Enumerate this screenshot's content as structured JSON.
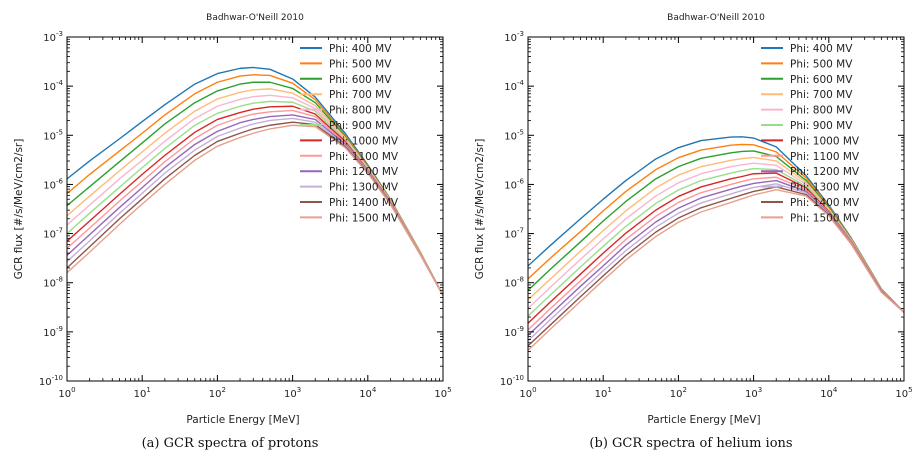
{
  "chart_data": [
    {
      "type": "line",
      "title": "Badhwar-O'Neill 2010",
      "xlabel": "Particle Energy [MeV]",
      "ylabel": "GCR flux [#/s/MeV/cm2/sr]",
      "xscale": "log",
      "yscale": "log",
      "xlim": [
        1,
        100000
      ],
      "ylim": [
        1e-10,
        0.001
      ],
      "xticks": [
        "10^0",
        "10^1",
        "10^2",
        "10^3",
        "10^4",
        "10^5"
      ],
      "yticks": [
        "10^-10",
        "10^-9",
        "10^-8",
        "10^-7",
        "10^-6",
        "10^-5",
        "10^-4",
        "10^-3"
      ],
      "legend_position": "top-right",
      "caption": "(a) GCR spectra of protons",
      "x": [
        1,
        2,
        5,
        10,
        20,
        50,
        100,
        200,
        300,
        500,
        1000,
        2000,
        5000,
        10000,
        20000,
        50000,
        100000
      ],
      "series": [
        {
          "name": "Phi: 400 MV",
          "color": "#1f77b4",
          "values": [
            1.3e-06,
            3e-06,
            8.5e-06,
            1.9e-05,
            4.2e-05,
            0.00011,
            0.00018,
            0.00023,
            0.00024,
            0.00022,
            0.00014,
            6e-05,
            1.1e-05,
            2.5e-06,
            5e-07,
            4.2e-08,
            5.5e-09
          ]
        },
        {
          "name": "Phi: 500 MV",
          "color": "#ff7f0e",
          "values": [
            6.5e-07,
            1.6e-06,
            4.8e-06,
            1.1e-05,
            2.6e-05,
            7e-05,
            0.00012,
            0.00016,
            0.00017,
            0.000165,
            0.000115,
            5.3e-05,
            1e-05,
            2.4e-06,
            4.9e-07,
            4.2e-08,
            5.5e-09
          ]
        },
        {
          "name": "Phi: 600 MV",
          "color": "#2ca02c",
          "values": [
            3.7e-07,
            9e-07,
            2.9e-06,
            7e-06,
            1.7e-05,
            4.6e-05,
            8e-05,
            0.00011,
            0.00012,
            0.00012,
            9e-05,
            4.6e-05,
            9.5e-06,
            2.3e-06,
            4.8e-07,
            4.1e-08,
            5.5e-09
          ]
        },
        {
          "name": "Phi: 700 MV",
          "color": "#ffbb78",
          "values": [
            2.3e-07,
            5.8e-07,
            1.9e-06,
            4.6e-06,
            1.1e-05,
            3.1e-05,
            5.5e-05,
            7.5e-05,
            8.4e-05,
            8.8e-05,
            7.2e-05,
            4e-05,
            9e-06,
            2.2e-06,
            4.7e-07,
            4.1e-08,
            5.5e-09
          ]
        },
        {
          "name": "Phi: 800 MV",
          "color": "#f7b6d2",
          "values": [
            1.5e-07,
            3.8e-07,
            1.3e-06,
            3.1e-06,
            7.6e-06,
            2.2e-05,
            3.9e-05,
            5.4e-05,
            6.1e-05,
            6.5e-05,
            5.8e-05,
            3.5e-05,
            8.5e-06,
            2.1e-06,
            4.6e-07,
            4e-08,
            5.5e-09
          ]
        },
        {
          "name": "Phi: 900 MV",
          "color": "#98df8a",
          "values": [
            1e-07,
            2.6e-07,
            8.8e-07,
            2.2e-06,
            5.4e-06,
            1.6e-05,
            2.8e-05,
            3.9e-05,
            4.5e-05,
            4.9e-05,
            4.7e-05,
            3.1e-05,
            8e-06,
            2e-06,
            4.5e-07,
            4e-08,
            5.5e-09
          ]
        },
        {
          "name": "Phi: 1000 MV",
          "color": "#d62728",
          "values": [
            7e-08,
            1.8e-07,
            6.3e-07,
            1.6e-06,
            3.9e-06,
            1.15e-05,
            2.1e-05,
            2.9e-05,
            3.4e-05,
            3.8e-05,
            3.9e-05,
            2.7e-05,
            7.5e-06,
            1.95e-06,
            4.4e-07,
            3.9e-08,
            5.5e-09
          ]
        },
        {
          "name": "Phi: 1100 MV",
          "color": "#ff9896",
          "values": [
            5e-08,
            1.3e-07,
            4.6e-07,
            1.15e-06,
            2.9e-06,
            8.6e-06,
            1.6e-05,
            2.3e-05,
            2.7e-05,
            3e-05,
            3.2e-05,
            2.4e-05,
            7e-06,
            1.9e-06,
            4.3e-07,
            3.9e-08,
            5.5e-09
          ]
        },
        {
          "name": "Phi: 1200 MV",
          "color": "#9467bd",
          "values": [
            3.6e-08,
            9.5e-08,
            3.4e-07,
            8.6e-07,
            2.2e-06,
            6.5e-06,
            1.2e-05,
            1.8e-05,
            2.1e-05,
            2.4e-05,
            2.6e-05,
            2.1e-05,
            6.6e-06,
            1.85e-06,
            4.2e-07,
            3.8e-08,
            5.5e-09
          ]
        },
        {
          "name": "Phi: 1300 MV",
          "color": "#c5b0d5",
          "values": [
            2.7e-08,
            7.1e-08,
            2.6e-07,
            6.6e-07,
            1.7e-06,
            5e-06,
            9.5e-06,
            1.4e-05,
            1.7e-05,
            2e-05,
            2.2e-05,
            1.85e-05,
            6.2e-06,
            1.8e-06,
            4.1e-07,
            3.8e-08,
            5.5e-09
          ]
        },
        {
          "name": "Phi: 1400 MV",
          "color": "#8c564b",
          "values": [
            2e-08,
            5.4e-08,
            2e-07,
            5.1e-07,
            1.3e-06,
            3.9e-06,
            7.5e-06,
            1.1e-05,
            1.35e-05,
            1.6e-05,
            1.85e-05,
            1.65e-05,
            5.9e-06,
            1.75e-06,
            4e-07,
            3.7e-08,
            5.5e-09
          ]
        },
        {
          "name": "Phi: 1500 MV",
          "color": "#e7a08c",
          "values": [
            1.6e-08,
            4.2e-08,
            1.55e-07,
            4e-07,
            1e-06,
            3.1e-06,
            6e-06,
            9e-06,
            1.1e-05,
            1.35e-05,
            1.6e-05,
            1.5e-05,
            5.6e-06,
            1.7e-06,
            3.9e-07,
            3.7e-08,
            5.5e-09
          ]
        }
      ]
    },
    {
      "type": "line",
      "title": "Badhwar-O'Neill 2010",
      "xlabel": "Particle Energy [MeV]",
      "ylabel": "GCR flux [#/s/MeV/cm2/sr]",
      "xscale": "log",
      "yscale": "log",
      "xlim": [
        1,
        100000
      ],
      "ylim": [
        1e-10,
        0.001
      ],
      "xticks": [
        "10^0",
        "10^1",
        "10^2",
        "10^3",
        "10^4",
        "10^5"
      ],
      "yticks": [
        "10^-10",
        "10^-9",
        "10^-8",
        "10^-7",
        "10^-6",
        "10^-5",
        "10^-4",
        "10^-3"
      ],
      "legend_position": "top-right",
      "caption": "(b) GCR spectra of helium ions",
      "x": [
        1,
        2,
        5,
        10,
        20,
        50,
        100,
        200,
        500,
        700,
        1000,
        2000,
        5000,
        10000,
        20000,
        50000,
        100000
      ],
      "series": [
        {
          "name": "Phi: 400 MV",
          "color": "#1f77b4",
          "values": [
            2.2e-08,
            5.8e-08,
            2e-07,
            5e-07,
            1.2e-06,
            3.3e-06,
            5.6e-06,
            7.8e-06,
            9.2e-06,
            9.3e-06,
            8.8e-06,
            5.8e-06,
            1.5e-06,
            3.8e-07,
            8e-08,
            7.5e-09,
            2.5e-09
          ]
        },
        {
          "name": "Phi: 500 MV",
          "color": "#ff7f0e",
          "values": [
            1.2e-08,
            3.2e-08,
            1.1e-07,
            2.9e-07,
            7.2e-07,
            2e-06,
            3.5e-06,
            5e-06,
            6.3e-06,
            6.5e-06,
            6.4e-06,
            4.6e-06,
            1.35e-06,
            3.6e-07,
            7.8e-08,
            7.4e-09,
            2.5e-09
          ]
        },
        {
          "name": "Phi: 600 MV",
          "color": "#2ca02c",
          "values": [
            7e-09,
            1.9e-08,
            6.8e-08,
            1.8e-07,
            4.5e-07,
            1.3e-06,
            2.3e-06,
            3.4e-06,
            4.4e-06,
            4.7e-06,
            4.8e-06,
            3.7e-06,
            1.2e-06,
            3.4e-07,
            7.6e-08,
            7.3e-09,
            2.5e-09
          ]
        },
        {
          "name": "Phi: 700 MV",
          "color": "#ffbb78",
          "values": [
            4.5e-09,
            1.2e-08,
            4.4e-08,
            1.15e-07,
            2.9e-07,
            8.5e-07,
            1.55e-06,
            2.3e-06,
            3.1e-06,
            3.35e-06,
            3.55e-06,
            3e-06,
            1.1e-06,
            3.2e-07,
            7.4e-08,
            7.2e-09,
            2.5e-09
          ]
        },
        {
          "name": "Phi: 800 MV",
          "color": "#f7b6d2",
          "values": [
            3e-09,
            8.2e-09,
            3e-08,
            7.8e-08,
            2e-07,
            5.8e-07,
            1.08e-06,
            1.65e-06,
            2.3e-06,
            2.5e-06,
            2.7e-06,
            2.45e-06,
            1e-06,
            3e-07,
            7.2e-08,
            7.1e-09,
            2.5e-09
          ]
        },
        {
          "name": "Phi: 900 MV",
          "color": "#98df8a",
          "values": [
            2.1e-09,
            5.7e-09,
            2.1e-08,
            5.5e-08,
            1.4e-07,
            4.1e-07,
            7.7e-07,
            1.2e-06,
            1.7e-06,
            1.9e-06,
            2.1e-06,
            2e-06,
            9.2e-07,
            2.9e-07,
            7e-08,
            7e-09,
            2.5e-09
          ]
        },
        {
          "name": "Phi: 1000 MV",
          "color": "#d62728",
          "values": [
            1.5e-09,
            4.1e-09,
            1.5e-08,
            4e-08,
            1.02e-07,
            3e-07,
            5.7e-07,
            8.9e-07,
            1.3e-06,
            1.45e-06,
            1.65e-06,
            1.7e-06,
            8.5e-07,
            2.8e-07,
            6.8e-08,
            6.9e-09,
            2.5e-09
          ]
        },
        {
          "name": "Phi: 1100 MV",
          "color": "#ff9896",
          "values": [
            1.1e-09,
            3e-09,
            1.1e-08,
            2.9e-08,
            7.6e-08,
            2.25e-07,
            4.3e-07,
            6.8e-07,
            1e-06,
            1.15e-06,
            1.3e-06,
            1.4e-06,
            7.8e-07,
            2.7e-07,
            6.6e-08,
            6.8e-09,
            2.5e-09
          ]
        },
        {
          "name": "Phi: 1200 MV",
          "color": "#9467bd",
          "values": [
            8.5e-10,
            2.3e-09,
            8.5e-09,
            2.2e-08,
            5.8e-08,
            1.72e-07,
            3.3e-07,
            5.3e-07,
            8e-07,
            9.2e-07,
            1.05e-06,
            1.2e-06,
            7.2e-07,
            2.6e-07,
            6.4e-08,
            6.7e-09,
            2.5e-09
          ]
        },
        {
          "name": "Phi: 1300 MV",
          "color": "#c5b0d5",
          "values": [
            6.6e-10,
            1.8e-09,
            6.6e-09,
            1.75e-08,
            4.5e-08,
            1.35e-07,
            2.6e-07,
            4.2e-07,
            6.4e-07,
            7.5e-07,
            8.7e-07,
            1.03e-06,
            6.7e-07,
            2.5e-07,
            6.3e-08,
            6.6e-09,
            2.5e-09
          ]
        },
        {
          "name": "Phi: 1400 MV",
          "color": "#8c564b",
          "values": [
            5.2e-10,
            1.4e-09,
            5.2e-09,
            1.38e-08,
            3.6e-08,
            1.07e-07,
            2.07e-07,
            3.35e-07,
            5.2e-07,
            6.1e-07,
            7.2e-07,
            8.9e-07,
            6.2e-07,
            2.4e-07,
            6.1e-08,
            6.5e-09,
            2.5e-09
          ]
        },
        {
          "name": "Phi: 1500 MV",
          "color": "#e7a08c",
          "values": [
            4.2e-10,
            1.15e-09,
            4.2e-09,
            1.12e-08,
            2.9e-08,
            8.7e-08,
            1.7e-07,
            2.75e-07,
            4.3e-07,
            5.1e-07,
            6.1e-07,
            7.8e-07,
            5.8e-07,
            2.3e-07,
            6e-08,
            6.4e-09,
            2.5e-09
          ]
        }
      ]
    }
  ]
}
